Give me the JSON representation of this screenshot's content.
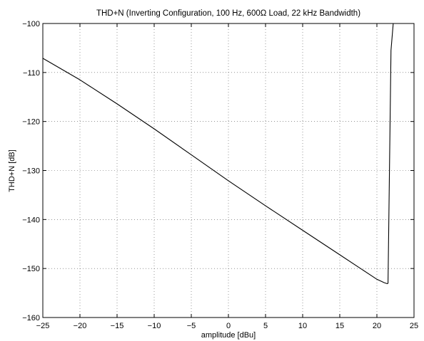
{
  "chart_data": {
    "type": "line",
    "title": "THD+N (Inverting Configuration, 100 Hz, 600Ω Load, 22 kHz Bandwidth)",
    "xlabel": "amplitude [dBu]",
    "ylabel": "THD+N [dB]",
    "xlim": [
      -25,
      25
    ],
    "ylim": [
      -160,
      -100
    ],
    "xticks": [
      -25,
      -20,
      -15,
      -10,
      -5,
      0,
      5,
      10,
      15,
      20,
      25
    ],
    "yticks": [
      -160,
      -150,
      -140,
      -130,
      -120,
      -110,
      -100
    ],
    "xtick_labels": [
      "−25",
      "−20",
      "−15",
      "−10",
      "−5",
      "0",
      "5",
      "10",
      "15",
      "20",
      "25"
    ],
    "ytick_labels": [
      "−160",
      "−150",
      "−140",
      "−130",
      "−120",
      "−110",
      "−100"
    ],
    "grid": true,
    "series": [
      {
        "color": "#000000",
        "x": [
          -25,
          -20,
          -15,
          -10,
          -5,
          0,
          5,
          10,
          15,
          20,
          21.0,
          21.4,
          21.5,
          21.9,
          22.2
        ],
        "y": [
          -107.1,
          -111.5,
          -116.4,
          -121.5,
          -126.8,
          -132.1,
          -137.2,
          -142.2,
          -147.2,
          -152.2,
          -152.9,
          -153.1,
          -153.0,
          -105.5,
          -100
        ]
      }
    ]
  }
}
